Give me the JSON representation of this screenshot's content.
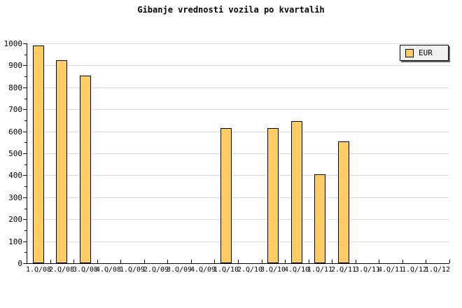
{
  "title": "Gibanje vrednosti vozila po kvartalih",
  "legend": {
    "label": "EUR"
  },
  "chart_data": {
    "type": "bar",
    "title": "Gibanje vrednosti vozila po kvartalih",
    "categories": [
      "1.Q/08",
      "2.Q/08",
      "3.Q/08",
      "4.Q/08",
      "1.Q/09",
      "2.Q/09",
      "3.Q/09",
      "4.Q/09",
      "1.Q/10",
      "2.Q/10",
      "3.Q/10",
      "4.Q/10",
      "1.Q/11",
      "2.Q/11",
      "3.Q/11",
      "4.Q/11",
      "1.Q/12",
      "1.Q/12"
    ],
    "series": [
      {
        "name": "EUR",
        "values": [
          990,
          925,
          855,
          null,
          null,
          null,
          null,
          null,
          615,
          null,
          615,
          645,
          405,
          555,
          null,
          null,
          null,
          null
        ]
      }
    ],
    "xlabel": "",
    "ylabel": "",
    "ylim": [
      0,
      1000
    ],
    "ytick_interval": 100,
    "yminor_tick_interval": 50,
    "grid": true,
    "legend_position": "top-right",
    "colors": {
      "bar_fill": "#FFCC66",
      "bar_border": "#000000",
      "grid": "#DCDCDC",
      "axis": "#000000",
      "legend_bg": "#F0F0F0",
      "legend_shadow": "#666666",
      "background": "#FFFFFF",
      "text": "#000000"
    }
  }
}
